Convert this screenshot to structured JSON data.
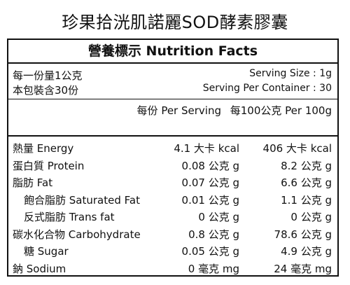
{
  "title": "珍果拾洸肌諾麗SOD酵素膠囊",
  "panel": {
    "header": "營養標示 Nutrition Facts",
    "serving_left_1": "每一份量1公克",
    "serving_right_1": "Serving Size : 1g",
    "serving_left_2": "本包裝含30份",
    "serving_right_2": "Serving Per Container : 30",
    "per_serving": "每份 Per Serving",
    "per_100": "每100公克 Per 100g"
  },
  "nutrients": [
    {
      "label": "熱量 Energy",
      "per_serving": "4.1 大卡 kcal",
      "per_100g": "406 大卡 kcal",
      "indent": false
    },
    {
      "label": "蛋白質 Protein",
      "per_serving": "0.08 公克 g",
      "per_100g": "8.2 公克 g",
      "indent": false
    },
    {
      "label": "脂肪 Fat",
      "per_serving": "0.07 公克 g",
      "per_100g": "6.6 公克 g",
      "indent": false
    },
    {
      "label": "飽合脂肪 Saturated Fat",
      "per_serving": "0.01 公克 g",
      "per_100g": "1.1 公克 g",
      "indent": true
    },
    {
      "label": "反式脂肪 Trans fat",
      "per_serving": "0 公克 g",
      "per_100g": "0 公克 g",
      "indent": true
    },
    {
      "label": "碳水化合物 Carbohydrate",
      "per_serving": "0.8 公克 g",
      "per_100g": "78.6 公克 g",
      "indent": false
    },
    {
      "label": "糖 Sugar",
      "per_serving": "0.05 公克 g",
      "per_100g": "4.9 公克 g",
      "indent": true
    },
    {
      "label": "鈉 Sodium",
      "per_serving": "0 毫克 mg",
      "per_100g": "24 毫克 mg",
      "indent": false
    }
  ]
}
